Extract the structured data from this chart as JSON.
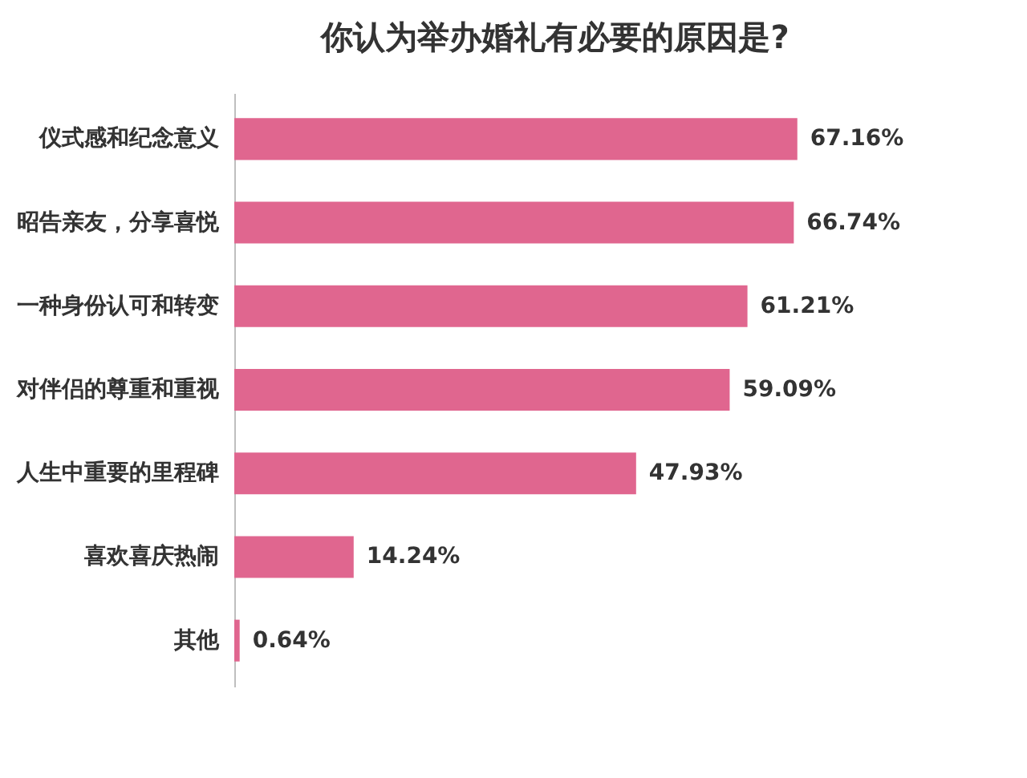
{
  "chart_data": {
    "type": "bar",
    "orientation": "horizontal",
    "title": "你认为举办婚礼有必要的原因是?",
    "categories": [
      "仪式感和纪念意义",
      "昭告亲友，分享喜悦",
      "一种身份认可和转变",
      "对伴侣的尊重和重视",
      "人生中重要的里程碑",
      "喜欢喜庆热闹",
      "其他"
    ],
    "values": [
      67.16,
      66.74,
      61.21,
      59.09,
      47.93,
      14.24,
      0.64
    ],
    "value_labels": [
      "67.16%",
      "66.74%",
      "61.21%",
      "59.09%",
      "47.93%",
      "14.24%",
      "0.64%"
    ],
    "color": "#e0668f",
    "tick_labels": "y"
  }
}
